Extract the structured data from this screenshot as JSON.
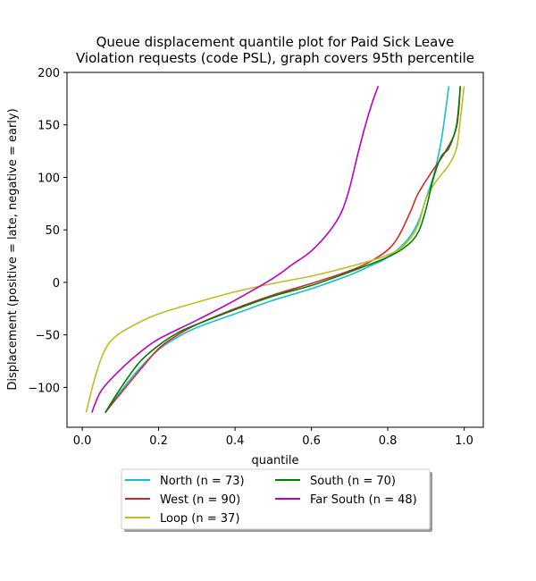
{
  "chart_data": {
    "type": "line",
    "title_line1": "Queue displacement quantile plot for Paid Sick Leave",
    "title_line2": "Violation  requests (code PSL), graph covers 95th percentile",
    "xlabel": "quantile",
    "ylabel": "Displacement (positive = late, negative = early)",
    "xlim": [
      -0.04,
      1.05
    ],
    "ylim": [
      -138,
      200
    ],
    "xticks": [
      0.0,
      0.2,
      0.4,
      0.6,
      0.8,
      1.0
    ],
    "xtick_labels": [
      "0.0",
      "0.2",
      "0.4",
      "0.6",
      "0.8",
      "1.0"
    ],
    "yticks": [
      -100,
      -50,
      0,
      50,
      100,
      150,
      200
    ],
    "ytick_labels": [
      "−100",
      "−50",
      "0",
      "50",
      "100",
      "150",
      "200"
    ],
    "legend_placement": "below plot, two columns",
    "series": [
      {
        "name": "North (n = 73)",
        "color": "#17becf",
        "points": [
          [
            0.06,
            -124
          ],
          [
            0.1,
            -104
          ],
          [
            0.15,
            -82
          ],
          [
            0.2,
            -64
          ],
          [
            0.25,
            -52
          ],
          [
            0.3,
            -43
          ],
          [
            0.4,
            -30
          ],
          [
            0.5,
            -17
          ],
          [
            0.6,
            -6
          ],
          [
            0.7,
            7
          ],
          [
            0.75,
            15
          ],
          [
            0.8,
            24
          ],
          [
            0.85,
            40
          ],
          [
            0.88,
            58
          ],
          [
            0.9,
            80
          ],
          [
            0.92,
            102
          ],
          [
            0.94,
            135
          ],
          [
            0.96,
            187
          ]
        ]
      },
      {
        "name": "West (n = 90)",
        "color": "#d62728",
        "points": [
          [
            0.06,
            -124
          ],
          [
            0.1,
            -106
          ],
          [
            0.15,
            -84
          ],
          [
            0.2,
            -63
          ],
          [
            0.25,
            -50
          ],
          [
            0.3,
            -40
          ],
          [
            0.4,
            -25
          ],
          [
            0.5,
            -12
          ],
          [
            0.6,
            -1
          ],
          [
            0.7,
            11
          ],
          [
            0.75,
            19
          ],
          [
            0.8,
            31
          ],
          [
            0.83,
            45
          ],
          [
            0.86,
            68
          ],
          [
            0.88,
            85
          ],
          [
            0.92,
            108
          ],
          [
            0.95,
            124
          ],
          [
            0.98,
            148
          ],
          [
            0.99,
            187
          ]
        ]
      },
      {
        "name": "Loop (n = 37)",
        "color": "#bcbd22",
        "points": [
          [
            0.01,
            -124
          ],
          [
            0.03,
            -95
          ],
          [
            0.05,
            -72
          ],
          [
            0.07,
            -58
          ],
          [
            0.1,
            -48
          ],
          [
            0.15,
            -38
          ],
          [
            0.2,
            -30
          ],
          [
            0.3,
            -19
          ],
          [
            0.4,
            -9
          ],
          [
            0.5,
            -1
          ],
          [
            0.6,
            6
          ],
          [
            0.7,
            15
          ],
          [
            0.8,
            26
          ],
          [
            0.85,
            38
          ],
          [
            0.88,
            55
          ],
          [
            0.9,
            80
          ],
          [
            0.93,
            98
          ],
          [
            0.96,
            112
          ],
          [
            0.98,
            128
          ],
          [
            0.99,
            155
          ],
          [
            1.0,
            187
          ]
        ]
      },
      {
        "name": "South (n = 70)",
        "color": "#008000",
        "points": [
          [
            0.06,
            -124
          ],
          [
            0.1,
            -101
          ],
          [
            0.15,
            -76
          ],
          [
            0.2,
            -60
          ],
          [
            0.25,
            -48
          ],
          [
            0.3,
            -40
          ],
          [
            0.4,
            -26
          ],
          [
            0.5,
            -13
          ],
          [
            0.6,
            -3
          ],
          [
            0.7,
            10
          ],
          [
            0.8,
            24
          ],
          [
            0.85,
            35
          ],
          [
            0.88,
            48
          ],
          [
            0.9,
            70
          ],
          [
            0.92,
            100
          ],
          [
            0.94,
            120
          ],
          [
            0.96,
            128
          ],
          [
            0.98,
            150
          ],
          [
            0.99,
            187
          ]
        ]
      },
      {
        "name": "Far South (n = 48)",
        "color": "#bf00bf",
        "points": [
          [
            0.025,
            -124
          ],
          [
            0.05,
            -103
          ],
          [
            0.1,
            -83
          ],
          [
            0.15,
            -67
          ],
          [
            0.2,
            -54
          ],
          [
            0.3,
            -36
          ],
          [
            0.4,
            -17
          ],
          [
            0.5,
            4
          ],
          [
            0.55,
            17
          ],
          [
            0.6,
            30
          ],
          [
            0.65,
            50
          ],
          [
            0.68,
            68
          ],
          [
            0.7,
            90
          ],
          [
            0.72,
            120
          ],
          [
            0.74,
            148
          ],
          [
            0.76,
            172
          ],
          [
            0.775,
            187
          ]
        ]
      }
    ]
  }
}
